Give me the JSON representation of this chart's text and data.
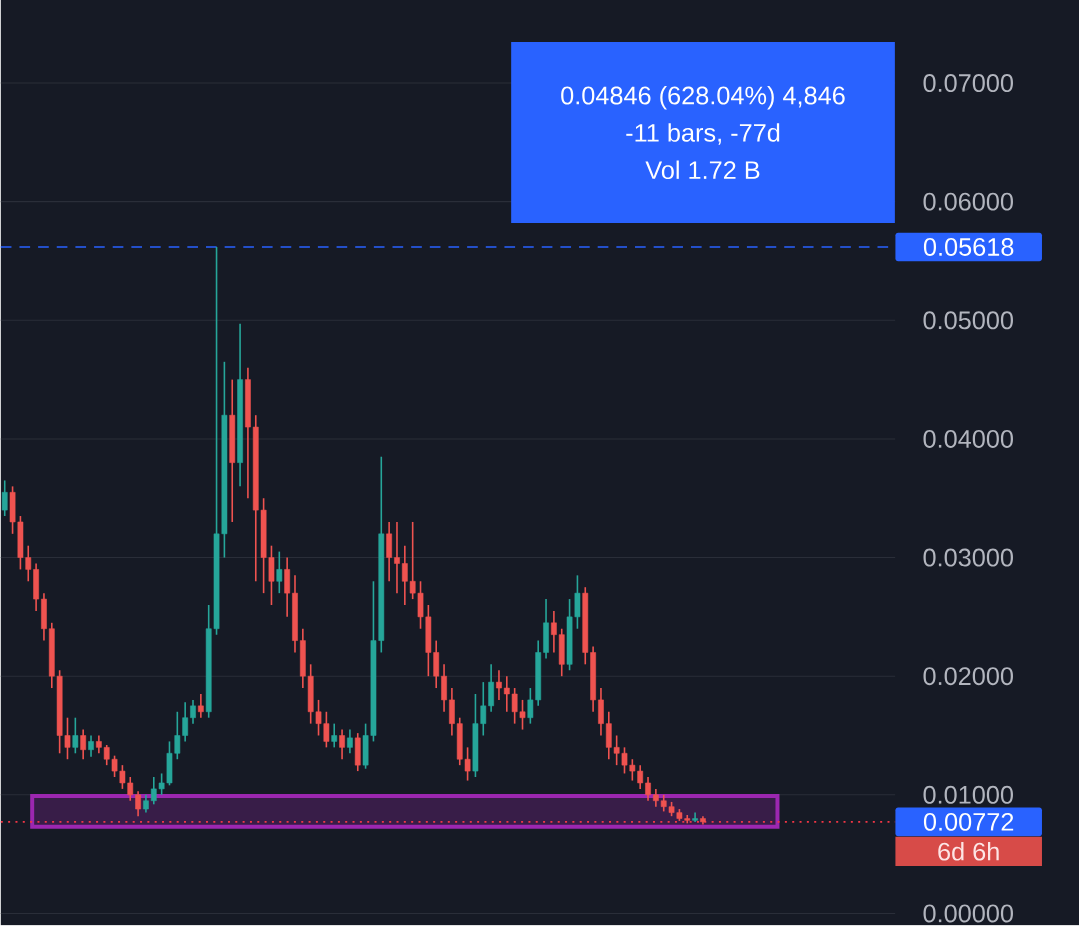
{
  "chart_data": {
    "type": "candlestick",
    "categories": [
      null,
      null,
      null,
      null,
      null,
      null,
      null,
      null,
      null,
      null,
      null,
      null,
      null,
      null,
      null,
      null,
      null,
      null,
      null,
      null,
      null,
      null,
      null,
      null,
      null,
      null,
      null,
      null,
      null,
      null,
      null,
      null,
      null,
      null,
      null,
      null,
      null,
      null,
      null,
      null,
      null,
      null,
      null,
      null,
      null,
      null,
      null,
      null,
      null,
      null,
      null,
      null,
      null,
      null,
      null,
      null,
      null,
      null,
      null,
      null,
      null,
      null,
      null,
      null,
      null,
      null,
      null,
      null,
      null,
      null,
      null,
      null,
      null,
      null,
      null,
      null,
      null,
      null,
      null,
      null,
      null,
      null,
      null,
      null,
      null,
      null,
      null,
      null,
      null,
      null,
      null,
      null,
      null,
      null,
      null,
      null,
      null,
      null,
      null,
      null,
      null,
      null,
      null,
      null,
      null,
      null,
      null,
      null,
      null,
      null,
      null,
      null,
      null,
      null
    ],
    "ohlc": [
      [
        0.034,
        0.0365,
        0.0335,
        0.0355
      ],
      [
        0.0355,
        0.036,
        0.032,
        0.033
      ],
      [
        0.033,
        0.0335,
        0.029,
        0.03
      ],
      [
        0.03,
        0.031,
        0.028,
        0.029
      ],
      [
        0.029,
        0.0295,
        0.0255,
        0.0265
      ],
      [
        0.0265,
        0.027,
        0.023,
        0.024
      ],
      [
        0.024,
        0.0245,
        0.019,
        0.02
      ],
      [
        0.02,
        0.0205,
        0.0135,
        0.015
      ],
      [
        0.015,
        0.0165,
        0.013,
        0.014
      ],
      [
        0.014,
        0.0165,
        0.0135,
        0.015
      ],
      [
        0.015,
        0.0155,
        0.013,
        0.0138
      ],
      [
        0.0138,
        0.015,
        0.0132,
        0.0145
      ],
      [
        0.0145,
        0.015,
        0.0135,
        0.014
      ],
      [
        0.014,
        0.0142,
        0.0125,
        0.013
      ],
      [
        0.013,
        0.0133,
        0.0115,
        0.012
      ],
      [
        0.012,
        0.0125,
        0.0105,
        0.011
      ],
      [
        0.011,
        0.0115,
        0.0095,
        0.01
      ],
      [
        0.01,
        0.0103,
        0.0082,
        0.0088
      ],
      [
        0.0088,
        0.01,
        0.0085,
        0.0095
      ],
      [
        0.0095,
        0.0115,
        0.0092,
        0.0105
      ],
      [
        0.0105,
        0.0118,
        0.01,
        0.011
      ],
      [
        0.011,
        0.0145,
        0.0108,
        0.0135
      ],
      [
        0.0135,
        0.017,
        0.013,
        0.015
      ],
      [
        0.015,
        0.0178,
        0.0145,
        0.0165
      ],
      [
        0.0165,
        0.018,
        0.016,
        0.0175
      ],
      [
        0.0175,
        0.0185,
        0.0165,
        0.017
      ],
      [
        0.017,
        0.026,
        0.0165,
        0.024
      ],
      [
        0.024,
        0.05618,
        0.0235,
        0.032
      ],
      [
        0.032,
        0.0465,
        0.03,
        0.042
      ],
      [
        0.042,
        0.045,
        0.033,
        0.038
      ],
      [
        0.038,
        0.0497,
        0.036,
        0.045
      ],
      [
        0.045,
        0.046,
        0.035,
        0.041
      ],
      [
        0.041,
        0.042,
        0.028,
        0.034
      ],
      [
        0.034,
        0.035,
        0.027,
        0.03
      ],
      [
        0.03,
        0.031,
        0.026,
        0.028
      ],
      [
        0.028,
        0.0305,
        0.027,
        0.029
      ],
      [
        0.029,
        0.03,
        0.025,
        0.027
      ],
      [
        0.027,
        0.0285,
        0.022,
        0.023
      ],
      [
        0.023,
        0.024,
        0.019,
        0.02
      ],
      [
        0.02,
        0.021,
        0.016,
        0.017
      ],
      [
        0.017,
        0.018,
        0.015,
        0.016
      ],
      [
        0.016,
        0.017,
        0.014,
        0.0145
      ],
      [
        0.0145,
        0.016,
        0.014,
        0.015
      ],
      [
        0.015,
        0.0155,
        0.013,
        0.014
      ],
      [
        0.014,
        0.0155,
        0.0135,
        0.0148
      ],
      [
        0.0148,
        0.0152,
        0.012,
        0.0125
      ],
      [
        0.0125,
        0.016,
        0.0122,
        0.015
      ],
      [
        0.015,
        0.028,
        0.0145,
        0.023
      ],
      [
        0.023,
        0.0385,
        0.022,
        0.032
      ],
      [
        0.032,
        0.033,
        0.028,
        0.03
      ],
      [
        0.03,
        0.033,
        0.027,
        0.0295
      ],
      [
        0.0295,
        0.031,
        0.026,
        0.028
      ],
      [
        0.028,
        0.033,
        0.0265,
        0.027
      ],
      [
        0.027,
        0.028,
        0.024,
        0.025
      ],
      [
        0.025,
        0.026,
        0.02,
        0.022
      ],
      [
        0.022,
        0.023,
        0.019,
        0.02
      ],
      [
        0.02,
        0.021,
        0.017,
        0.018
      ],
      [
        0.018,
        0.019,
        0.015,
        0.016
      ],
      [
        0.016,
        0.0165,
        0.0125,
        0.013
      ],
      [
        0.013,
        0.014,
        0.0112,
        0.012
      ],
      [
        0.012,
        0.0185,
        0.0115,
        0.016
      ],
      [
        0.016,
        0.0195,
        0.015,
        0.0175
      ],
      [
        0.0175,
        0.021,
        0.017,
        0.0195
      ],
      [
        0.0195,
        0.0205,
        0.018,
        0.019
      ],
      [
        0.019,
        0.02,
        0.017,
        0.0185
      ],
      [
        0.0185,
        0.019,
        0.016,
        0.017
      ],
      [
        0.017,
        0.018,
        0.0155,
        0.0165
      ],
      [
        0.0165,
        0.019,
        0.016,
        0.018
      ],
      [
        0.018,
        0.023,
        0.0175,
        0.022
      ],
      [
        0.022,
        0.0265,
        0.0215,
        0.0245
      ],
      [
        0.0245,
        0.0255,
        0.022,
        0.0235
      ],
      [
        0.0235,
        0.024,
        0.02,
        0.021
      ],
      [
        0.021,
        0.0265,
        0.0205,
        0.025
      ],
      [
        0.025,
        0.0285,
        0.024,
        0.027
      ],
      [
        0.027,
        0.0275,
        0.021,
        0.022
      ],
      [
        0.022,
        0.0225,
        0.017,
        0.018
      ],
      [
        0.018,
        0.019,
        0.015,
        0.016
      ],
      [
        0.016,
        0.017,
        0.013,
        0.014
      ],
      [
        0.014,
        0.015,
        0.0125,
        0.0135
      ],
      [
        0.0135,
        0.014,
        0.0118,
        0.0125
      ],
      [
        0.0125,
        0.013,
        0.0112,
        0.012
      ],
      [
        0.012,
        0.0125,
        0.0105,
        0.011
      ],
      [
        0.011,
        0.0115,
        0.0095,
        0.01
      ],
      [
        0.01,
        0.0105,
        0.009,
        0.0095
      ],
      [
        0.0095,
        0.01,
        0.0086,
        0.009
      ],
      [
        0.009,
        0.0094,
        0.0082,
        0.0085
      ],
      [
        0.0085,
        0.0088,
        0.0078,
        0.008
      ],
      [
        0.008,
        0.0083,
        0.0076,
        0.00785
      ],
      [
        0.00785,
        0.0085,
        0.0077,
        0.008
      ],
      [
        0.008,
        0.0082,
        0.0075,
        0.00772
      ],
      null,
      null,
      null,
      null,
      null,
      null,
      null,
      null,
      null,
      null,
      null,
      null,
      null,
      null,
      null,
      null,
      null,
      null,
      null,
      null,
      null,
      null,
      null,
      null
    ],
    "ylim": [
      -0.001,
      0.077
    ],
    "yticks": [
      {
        "value": 0,
        "label": "0.00000"
      },
      {
        "value": 0.01,
        "label": "0.01000"
      },
      {
        "value": 0.02,
        "label": "0.02000"
      },
      {
        "value": 0.03,
        "label": "0.03000"
      },
      {
        "value": 0.04,
        "label": "0.04000"
      },
      {
        "value": 0.05,
        "label": "0.05000"
      },
      {
        "value": 0.06,
        "label": "0.06000"
      },
      {
        "value": 0.07,
        "label": "0.07000"
      }
    ],
    "tick_labels": "y",
    "grid": "y",
    "ref_lines": [
      {
        "axis": "y",
        "value": 0.05618,
        "label": "0.05618",
        "color": "#2962ff",
        "line_style": "dashed"
      },
      {
        "axis": "y",
        "value": 0.00772,
        "label": "0.00772",
        "color": "#f23645",
        "line_style": "dotted"
      }
    ],
    "bands": [
      {
        "axis": "y",
        "from": 0.0073,
        "to": 0.0099,
        "color": "#9c27b0"
      }
    ],
    "annotations": [
      "0.04846 (628.04%) 4,846",
      "-11 bars, -77d",
      "Vol 1.72 B",
      "6d 6h"
    ]
  }
}
